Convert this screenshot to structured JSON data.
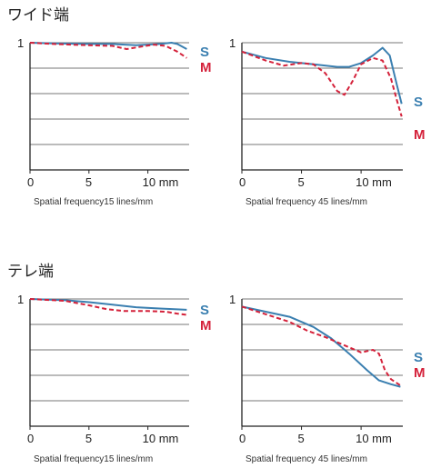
{
  "sections": [
    {
      "title": "ワイド端"
    },
    {
      "title": "テレ端"
    }
  ],
  "colors": {
    "S": "#3a7fb0",
    "M": "#d4213a",
    "grid": "#777777"
  },
  "chart_data": [
    {
      "type": "line",
      "section": "ワイド端",
      "xlabel": "Spatial frequency15 lines/mm",
      "x_ticks": [
        "0",
        "5",
        "10 mm"
      ],
      "y_tick": "1",
      "xlim": [
        0,
        13.5
      ],
      "ylim": [
        0,
        1
      ],
      "series": [
        {
          "name": "S",
          "style": "solid",
          "points": [
            [
              0,
              1.0
            ],
            [
              2,
              0.995
            ],
            [
              5,
              0.99
            ],
            [
              7,
              0.99
            ],
            [
              9,
              0.98
            ],
            [
              11,
              0.99
            ],
            [
              12,
              1.0
            ],
            [
              12.5,
              0.99
            ],
            [
              13.3,
              0.95
            ]
          ]
        },
        {
          "name": "M",
          "style": "dashed",
          "points": [
            [
              0,
              1.0
            ],
            [
              2,
              0.99
            ],
            [
              5,
              0.98
            ],
            [
              7,
              0.975
            ],
            [
              8.2,
              0.95
            ],
            [
              9.5,
              0.97
            ],
            [
              10.5,
              0.985
            ],
            [
              11.5,
              0.975
            ],
            [
              12.5,
              0.93
            ],
            [
              13.3,
              0.88
            ]
          ]
        }
      ]
    },
    {
      "type": "line",
      "section": "ワイド端",
      "xlabel": "Spatial frequency 45 lines/mm",
      "x_ticks": [
        "0",
        "5",
        "10 mm"
      ],
      "y_tick": "1",
      "xlim": [
        0,
        13.5
      ],
      "ylim": [
        0,
        1
      ],
      "series": [
        {
          "name": "S",
          "style": "solid",
          "points": [
            [
              0,
              0.93
            ],
            [
              2,
              0.88
            ],
            [
              4,
              0.85
            ],
            [
              6,
              0.83
            ],
            [
              8,
              0.81
            ],
            [
              9,
              0.81
            ],
            [
              10,
              0.84
            ],
            [
              11,
              0.9
            ],
            [
              11.8,
              0.96
            ],
            [
              12.4,
              0.9
            ],
            [
              13,
              0.67
            ],
            [
              13.4,
              0.52
            ]
          ]
        },
        {
          "name": "M",
          "style": "dashed",
          "points": [
            [
              0,
              0.93
            ],
            [
              2,
              0.86
            ],
            [
              3.5,
              0.82
            ],
            [
              5,
              0.84
            ],
            [
              6,
              0.83
            ],
            [
              7,
              0.76
            ],
            [
              8,
              0.62
            ],
            [
              8.6,
              0.59
            ],
            [
              9.3,
              0.7
            ],
            [
              10,
              0.83
            ],
            [
              11,
              0.88
            ],
            [
              11.8,
              0.86
            ],
            [
              12.5,
              0.72
            ],
            [
              13,
              0.55
            ],
            [
              13.4,
              0.42
            ]
          ]
        }
      ]
    },
    {
      "type": "line",
      "section": "テレ端",
      "xlabel": "Spatial frequency15 lines/mm",
      "x_ticks": [
        "0",
        "5",
        "10 mm"
      ],
      "y_tick": "1",
      "xlim": [
        0,
        13.5
      ],
      "ylim": [
        0,
        1
      ],
      "series": [
        {
          "name": "S",
          "style": "solid",
          "points": [
            [
              0,
              1.0
            ],
            [
              3,
              0.99
            ],
            [
              5,
              0.975
            ],
            [
              7,
              0.955
            ],
            [
              9,
              0.935
            ],
            [
              11,
              0.925
            ],
            [
              13.3,
              0.915
            ]
          ]
        },
        {
          "name": "M",
          "style": "dashed",
          "points": [
            [
              0,
              1.0
            ],
            [
              3,
              0.985
            ],
            [
              5,
              0.95
            ],
            [
              6.5,
              0.92
            ],
            [
              8,
              0.905
            ],
            [
              10,
              0.905
            ],
            [
              11.5,
              0.9
            ],
            [
              12.5,
              0.885
            ],
            [
              13.3,
              0.875
            ]
          ]
        }
      ]
    },
    {
      "type": "line",
      "section": "テレ端",
      "xlabel": "Spatial frequency 45 lines/mm",
      "x_ticks": [
        "0",
        "5",
        "10 mm"
      ],
      "y_tick": "1",
      "xlim": [
        0,
        13.5
      ],
      "ylim": [
        0,
        1
      ],
      "series": [
        {
          "name": "S",
          "style": "solid",
          "points": [
            [
              0,
              0.94
            ],
            [
              2,
              0.9
            ],
            [
              4,
              0.86
            ],
            [
              6,
              0.78
            ],
            [
              7.5,
              0.69
            ],
            [
              9,
              0.57
            ],
            [
              10.5,
              0.44
            ],
            [
              11.5,
              0.36
            ],
            [
              12.5,
              0.33
            ],
            [
              13.3,
              0.31
            ]
          ]
        },
        {
          "name": "M",
          "style": "dashed",
          "points": [
            [
              0,
              0.94
            ],
            [
              2,
              0.88
            ],
            [
              4,
              0.82
            ],
            [
              5.5,
              0.75
            ],
            [
              7,
              0.7
            ],
            [
              8.5,
              0.64
            ],
            [
              10,
              0.58
            ],
            [
              11,
              0.6
            ],
            [
              11.5,
              0.57
            ],
            [
              12,
              0.44
            ],
            [
              12.5,
              0.37
            ],
            [
              13.3,
              0.32
            ]
          ]
        }
      ]
    }
  ]
}
